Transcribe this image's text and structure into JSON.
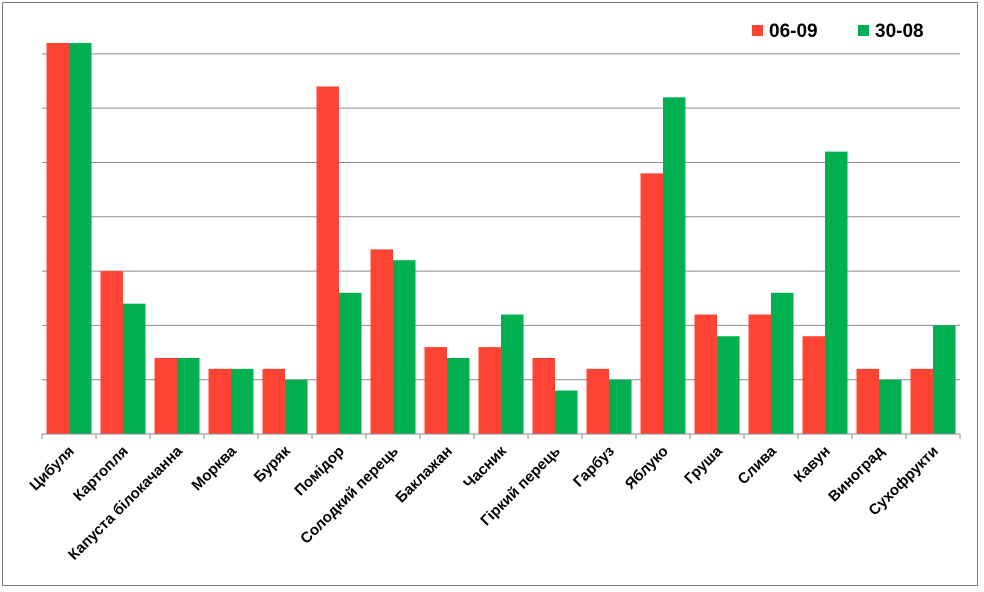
{
  "chart_data": {
    "type": "bar",
    "categories": [
      "Цибуля",
      "Картопля",
      "Капуста білокачанна",
      "Морква",
      "Буряк",
      "Помідор",
      "Солодкий перець",
      "Баклажан",
      "Часник",
      "Гіркий перець",
      "Гарбуз",
      "Яблуко",
      "Груша",
      "Слива",
      "Кавун",
      "Виноград",
      "Сухофрукти"
    ],
    "series": [
      {
        "name": "06-09",
        "color": "#ff4433",
        "values": [
          36,
          15,
          7,
          6,
          6,
          32,
          17,
          8,
          8,
          7,
          6,
          24,
          11,
          11,
          9,
          6,
          6
        ]
      },
      {
        "name": "30-08",
        "color": "#00b050",
        "values": [
          36,
          12,
          7,
          6,
          5,
          13,
          16,
          7,
          11,
          4,
          5,
          31,
          9,
          13,
          26,
          5,
          10
        ]
      }
    ],
    "ylim": [
      0,
      36
    ],
    "gridlines": [
      5,
      10,
      15,
      20,
      25,
      30,
      35
    ],
    "grid": true,
    "legend": "top-right",
    "title": "",
    "xlabel": "",
    "ylabel": ""
  }
}
